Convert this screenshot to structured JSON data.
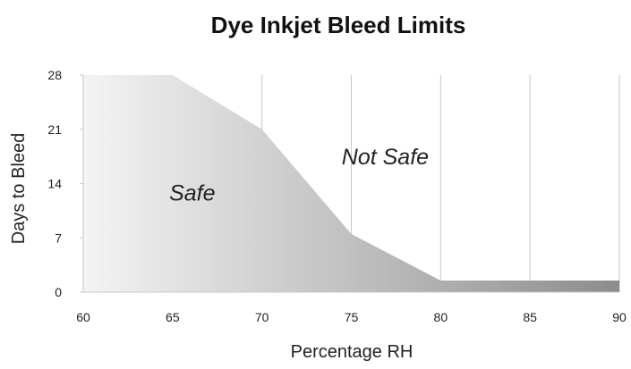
{
  "chart_data": {
    "type": "area",
    "title": "Dye Inkjet Bleed Limits",
    "xlabel": "Percentage RH",
    "ylabel": "Days to Bleed",
    "xlim": [
      60,
      90
    ],
    "ylim": [
      0,
      28
    ],
    "x_ticks": [
      60,
      65,
      70,
      75,
      80,
      85,
      90
    ],
    "y_ticks": [
      0,
      7,
      14,
      21,
      28
    ],
    "grid": "vertical",
    "series": [
      {
        "x": [
          60,
          65,
          70,
          75,
          80,
          90
        ],
        "y": [
          28,
          28,
          21,
          7.5,
          1.5,
          1.5
        ]
      }
    ],
    "annotations": [
      {
        "text": "Safe",
        "x": 66.1,
        "y": 11.8
      },
      {
        "text": "Not Safe",
        "x": 76.9,
        "y": 16.5
      }
    ],
    "fill_gradient": [
      "#f4f4f4",
      "#8c8c8c"
    ]
  }
}
